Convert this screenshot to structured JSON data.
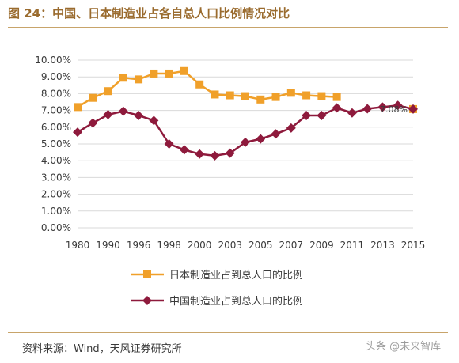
{
  "header": {
    "title": "图 24：中国、日本制造业占各自总人口比例情况对比"
  },
  "footer": {
    "source": "资料来源：Wind，天风证券研究所",
    "watermark": "头条 @未来智库"
  },
  "colors": {
    "japan": "#f0a02a",
    "china": "#8e1a3c",
    "title": "#9a6b2e",
    "rule": "#c8a46a",
    "grid": "#d9d9d9"
  },
  "chart_data": {
    "type": "line",
    "title": "",
    "xlabel": "",
    "ylabel": "",
    "x_tick_labels": [
      "1980",
      "1990",
      "1996",
      "1998",
      "2000",
      "2003",
      "2005",
      "2007",
      "2009",
      "2011",
      "2013",
      "2015"
    ],
    "y_tick_labels": [
      "0.00%",
      "1.00%",
      "2.00%",
      "3.00%",
      "4.00%",
      "5.00%",
      "6.00%",
      "7.00%",
      "8.00%",
      "9.00%",
      "10.00%"
    ],
    "ylim": [
      0,
      10
    ],
    "grid": true,
    "legend_position": "bottom",
    "annotation": "7.08%",
    "series": [
      {
        "name": "日本制造业占到总人口的比例",
        "values": [
          7.2,
          7.75,
          8.15,
          8.95,
          8.85,
          9.2,
          9.2,
          9.35,
          8.55,
          7.95,
          7.9,
          7.85,
          7.65,
          7.8,
          8.05,
          7.9,
          7.85,
          7.8,
          null,
          null,
          null,
          null,
          7.08
        ]
      },
      {
        "name": "中国制造业占到总人口的比例",
        "values": [
          5.7,
          6.25,
          6.75,
          6.95,
          6.7,
          6.4,
          5.0,
          4.65,
          4.4,
          4.3,
          4.45,
          5.1,
          5.3,
          5.6,
          5.95,
          6.7,
          6.7,
          7.15,
          6.85,
          7.1,
          7.2,
          7.3,
          7.08
        ]
      }
    ]
  }
}
